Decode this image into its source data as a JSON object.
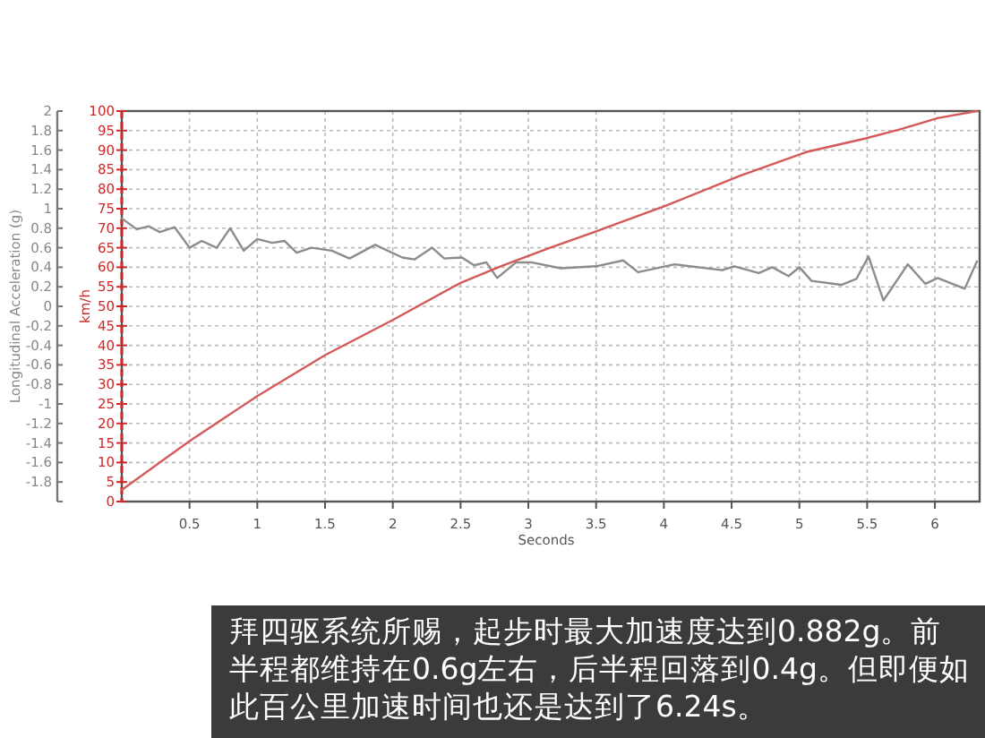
{
  "chart_data": {
    "type": "line",
    "xlabel": "Seconds",
    "ylabel": "Longitudinal Acceleration (g)",
    "y2label": "km/h",
    "xlim": [
      0,
      6.33
    ],
    "xticks": [
      0.5,
      1,
      1.5,
      2,
      2.5,
      3,
      3.5,
      4,
      4.5,
      5,
      5.5,
      6
    ],
    "ylim": [
      -2,
      2
    ],
    "yticks": [
      {
        "value": -2,
        "label": null
      },
      -1.8,
      -1.6,
      -1.4,
      -1.2,
      -1,
      -0.8,
      -0.6,
      -0.4,
      -0.2,
      0,
      0.2,
      0.4,
      0.6,
      0.8,
      1,
      1.2,
      1.4,
      1.6,
      1.8,
      2
    ],
    "y2lim": [
      0,
      100
    ],
    "y2ticks": [
      0,
      5,
      10,
      15,
      20,
      25,
      30,
      35,
      40,
      45,
      50,
      55,
      60,
      65,
      70,
      75,
      80,
      85,
      90,
      95,
      100
    ],
    "grid": true,
    "series": [
      {
        "color": "#8c8c8c",
        "axis": "y",
        "x": [
          0,
          0.11,
          0.2,
          0.28,
          0.39,
          0.5,
          0.59,
          0.7,
          0.8,
          0.9,
          1.0,
          1.11,
          1.2,
          1.29,
          1.4,
          1.55,
          1.68,
          1.87,
          2.07,
          2.16,
          2.29,
          2.38,
          2.51,
          2.6,
          2.69,
          2.77,
          2.91,
          3.02,
          3.24,
          3.5,
          3.7,
          3.81,
          4.08,
          4.43,
          4.52,
          4.7,
          4.8,
          4.92,
          5.0,
          5.09,
          5.31,
          5.42,
          5.51,
          5.62,
          5.8,
          5.93,
          6.02,
          6.22,
          6.31
        ],
        "values": [
          0.9,
          0.79,
          0.82,
          0.76,
          0.81,
          0.6,
          0.67,
          0.6,
          0.8,
          0.57,
          0.69,
          0.65,
          0.67,
          0.55,
          0.6,
          0.57,
          0.49,
          0.63,
          0.5,
          0.48,
          0.6,
          0.49,
          0.5,
          0.42,
          0.45,
          0.29,
          0.45,
          0.45,
          0.39,
          0.41,
          0.47,
          0.35,
          0.43,
          0.37,
          0.41,
          0.34,
          0.4,
          0.31,
          0.4,
          0.26,
          0.22,
          0.28,
          0.51,
          0.06,
          0.43,
          0.23,
          0.29,
          0.18,
          0.46
        ]
      },
      {
        "color": "#d45a5a",
        "axis": "y2",
        "x": [
          0,
          0.5,
          1,
          1.5,
          2,
          2.5,
          2.8,
          3.16,
          3.5,
          4.01,
          4.56,
          5.05,
          5.49,
          5.75,
          6.02,
          6.31
        ],
        "values": [
          3,
          15.5,
          27,
          37.5,
          46.5,
          56,
          60.3,
          65,
          69.2,
          75.7,
          83.4,
          89.5,
          93,
          95.4,
          98.2,
          100
        ]
      }
    ],
    "annotations": [
      "拜四驱系统所赐，起步时最大加速度达到0.882g。前半程都维持在0.6g左右，后半程回落到0.4g。但即便如此百公里加速时间也还是达到了6.24s。"
    ]
  }
}
